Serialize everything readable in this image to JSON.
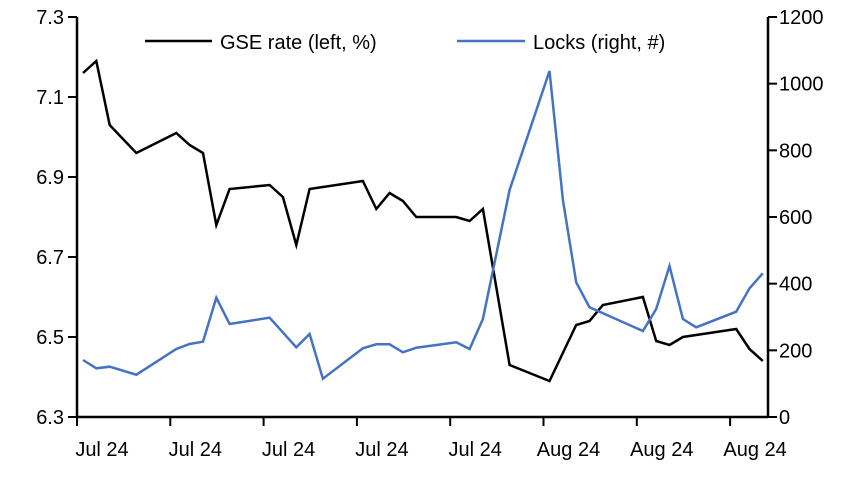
{
  "chart_data": {
    "type": "line",
    "title": "",
    "xlabel": "",
    "ylabel_left": "",
    "ylabel_right": "",
    "x_tick_labels": [
      "Jul 24",
      "Jul 24",
      "Jul 24",
      "Jul 24",
      "Jul 24",
      "Aug 24",
      "Aug 24",
      "Aug 24"
    ],
    "y_left": {
      "range": [
        6.3,
        7.3
      ],
      "ticks": [
        "6.3",
        "6.5",
        "6.7",
        "6.9",
        "7.1",
        "7.3"
      ]
    },
    "y_right": {
      "range": [
        0,
        1200
      ],
      "ticks": [
        "0",
        "200",
        "400",
        "600",
        "800",
        "1000",
        "1200"
      ]
    },
    "grid": false,
    "legend_placement": "top",
    "series": [
      {
        "name": "GSE rate (left, %)",
        "axis": "left",
        "color": "#000000",
        "values": [
          7.16,
          7.19,
          7.03,
          null,
          6.96,
          null,
          null,
          7.01,
          6.98,
          6.96,
          6.78,
          6.87,
          null,
          null,
          6.88,
          6.85,
          6.73,
          6.87,
          null,
          null,
          null,
          6.89,
          6.82,
          6.86,
          6.84,
          6.8,
          null,
          null,
          6.8,
          6.79,
          6.82,
          null,
          6.43,
          null,
          null,
          6.39,
          null,
          6.53,
          6.54,
          6.58,
          null,
          null,
          6.6,
          6.49,
          6.48,
          6.5,
          null,
          null,
          null,
          6.52,
          6.47,
          6.44
        ]
      },
      {
        "name": "Locks (right, #)",
        "axis": "right",
        "color": "#4472C4",
        "values": [
          171,
          146,
          151,
          null,
          127,
          null,
          null,
          204,
          219,
          226,
          358,
          279,
          null,
          null,
          298,
          null,
          209,
          249,
          115,
          null,
          null,
          206,
          218,
          218,
          194,
          208,
          null,
          null,
          224,
          204,
          294,
          null,
          681,
          null,
          null,
          1038,
          651,
          404,
          329,
          null,
          null,
          null,
          258,
          324,
          453,
          294,
          269,
          null,
          null,
          316,
          386,
          431
        ]
      }
    ]
  }
}
